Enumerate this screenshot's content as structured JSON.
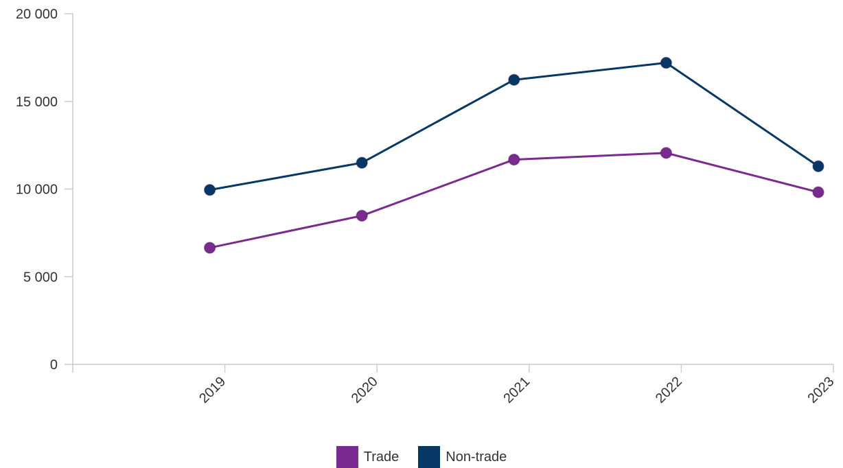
{
  "chart_data": {
    "type": "line",
    "title": "",
    "xlabel": "",
    "ylabel": "",
    "categories": [
      "2019",
      "2020",
      "2021",
      "2022",
      "2023"
    ],
    "series": [
      {
        "name": "Trade",
        "color": "#7b2a8f",
        "values": [
          6650,
          8480,
          11680,
          12060,
          9820
        ]
      },
      {
        "name": "Non-trade",
        "color": "#063866",
        "values": [
          9950,
          11500,
          16230,
          17200,
          11300
        ]
      }
    ],
    "ylim": [
      0,
      20000
    ],
    "yticks": [
      0,
      5000,
      10000,
      15000,
      20000
    ],
    "ytick_labels": [
      "0",
      "5 000",
      "10 000",
      "15 000",
      "20 000"
    ],
    "grid": false,
    "legend_position": "bottom"
  }
}
